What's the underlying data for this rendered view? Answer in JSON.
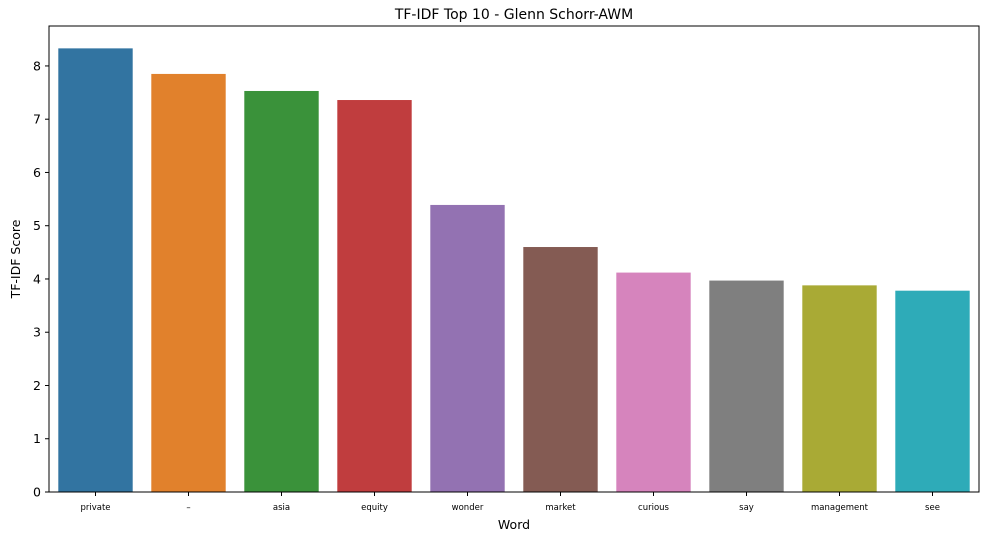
{
  "chart_data": {
    "type": "bar",
    "title": "TF-IDF Top 10 - Glenn Schorr-AWM",
    "xlabel": "Word",
    "ylabel": "TF-IDF Score",
    "categories": [
      "private",
      "–",
      "asia",
      "equity",
      "wonder",
      "market",
      "curious",
      "say",
      "management",
      "see"
    ],
    "values": [
      8.33,
      7.85,
      7.53,
      7.36,
      5.39,
      4.6,
      4.12,
      3.97,
      3.88,
      3.78
    ],
    "colors": [
      "#3274a1",
      "#e1812c",
      "#3a923a",
      "#c03d3e",
      "#9372b2",
      "#845b53",
      "#d684bd",
      "#7f7f7f",
      "#a9aa35",
      "#2eabb8"
    ],
    "ylim": [
      0,
      8.75
    ],
    "yticks": [
      "0",
      "1",
      "2",
      "3",
      "4",
      "5",
      "6",
      "7",
      "8"
    ],
    "grid": false,
    "legend": "none"
  }
}
